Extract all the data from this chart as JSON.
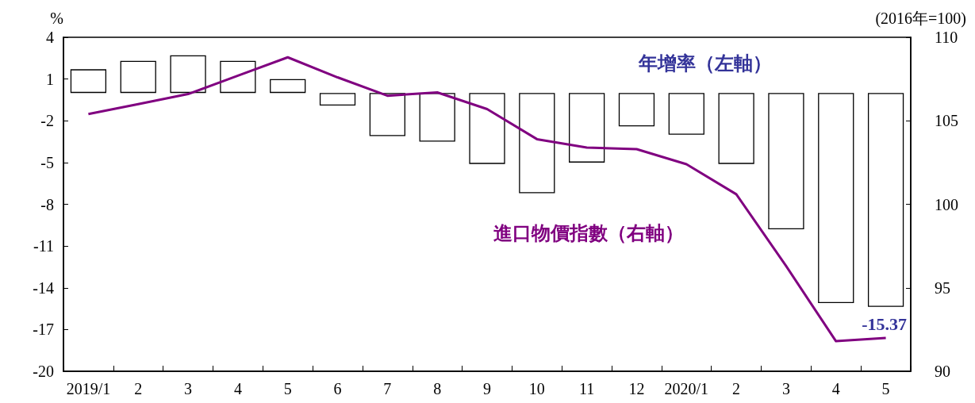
{
  "chart_data": {
    "type": "bar",
    "ylabel": "%",
    "y2label": "(2016年=100)",
    "categories": [
      "2019/1",
      "2",
      "3",
      "4",
      "5",
      "6",
      "7",
      "8",
      "9",
      "10",
      "11",
      "12",
      "2020/1",
      "2",
      "3",
      "4",
      "5"
    ],
    "series": [
      {
        "name": "年增率（左軸）",
        "color": "#ffffff",
        "values": [
          1.7,
          2.3,
          2.7,
          2.3,
          1.0,
          -0.9,
          -3.1,
          -3.5,
          -5.1,
          -7.2,
          -5.0,
          -2.4,
          -3.0,
          -5.1,
          -9.8,
          -15.1,
          -15.37
        ],
        "value_labels": [
          null,
          null,
          null,
          null,
          null,
          null,
          null,
          null,
          null,
          null,
          null,
          null,
          null,
          null,
          null,
          null,
          "-15.37"
        ]
      },
      {
        "name": "進口物價指數（右軸）",
        "type": "line",
        "axis": "y2",
        "color": "#800080",
        "values": [
          105.4,
          106.0,
          106.6,
          107.7,
          108.8,
          107.6,
          106.5,
          106.7,
          105.7,
          103.9,
          103.4,
          103.3,
          102.4,
          100.6,
          96.3,
          91.8,
          92.0
        ]
      }
    ],
    "ylim": [
      -20,
      4
    ],
    "yticks": [
      4,
      1,
      -2,
      -5,
      -8,
      -11,
      -14,
      -17,
      -20
    ],
    "y2lim": [
      90,
      110
    ],
    "y2ticks": [
      90,
      95,
      100,
      105,
      110
    ],
    "marker": "none"
  }
}
